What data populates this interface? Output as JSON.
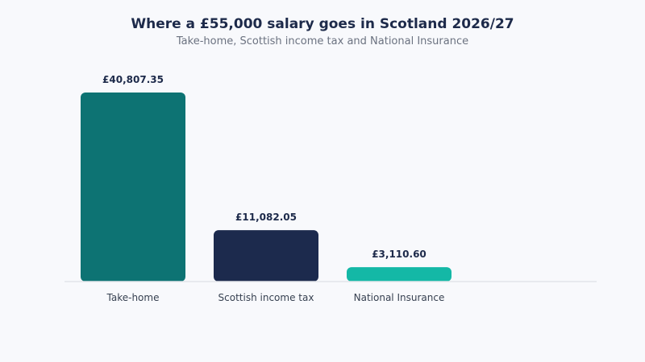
{
  "title": "Where a £55,000 salary goes in Scotland 2026/27",
  "subtitle": "Take-home, Scottish income tax and National Insurance",
  "chart_data": {
    "type": "bar",
    "title": "Where a £55,000 salary goes in Scotland 2026/27",
    "subtitle": "Take-home, Scottish income tax and National Insurance",
    "categories": [
      "Take-home",
      "Scottish income tax",
      "National Insurance"
    ],
    "values": [
      40807.35,
      11082.05,
      3110.6
    ],
    "value_labels": [
      "£40,807.35",
      "£11,082.05",
      "£3,110.60"
    ],
    "colors": [
      "#0d7373",
      "#1c2a4d",
      "#14b8a6"
    ],
    "xlabel": "",
    "ylabel": "",
    "ylim": [
      0,
      40807.35
    ],
    "grid": false,
    "legend": "none"
  }
}
